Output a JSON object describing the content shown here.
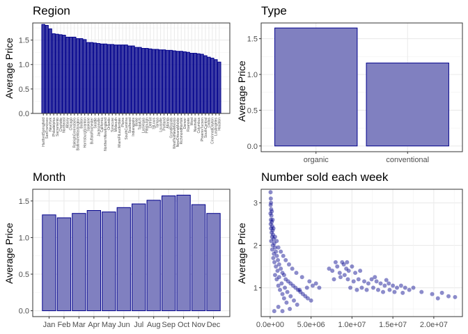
{
  "chart_data": [
    {
      "type": "bar",
      "title": "Region",
      "xlabel": "",
      "ylabel": "Average Price",
      "ylim": [
        0,
        1.85
      ],
      "yticks": [
        0.0,
        0.5,
        1.0,
        1.5
      ],
      "grid": true,
      "bar_fill": "#00008b",
      "bar_stroke": "#00008b",
      "categories": [
        "HartfordSpringfield",
        "SanFrancisco",
        "NewYork",
        "Philadelphia",
        "Sacramento",
        "Charlotte",
        "Northeast",
        "Albany",
        "Chicago",
        "RaleighGreensboro",
        "BaltimoreWashington",
        "Boston",
        "HarrisburgScranton",
        "Spokane",
        "BuffaloRochester",
        "Seattle",
        "Jacksonville",
        "California",
        "NorthernNewEngland",
        "Orlando",
        "Syracuse",
        "Midsouth",
        "MiamiFtLauderdale",
        "Plains",
        "SouthCarolina",
        "Southeast",
        "Indianapolis",
        "Boise",
        "TotalUS",
        "LasVegas",
        "Pittsburgh",
        "Detroit",
        "StLouis",
        "Tampa",
        "Louisville",
        "Portland",
        "Atlanta",
        "GrandRapids",
        "WestTexNewMexico",
        "NewOrleansMobile",
        "RichmondNorfolk",
        "Denver",
        "Roanoke",
        "West",
        "Nashville",
        "Columbus",
        "PhoenixTucson",
        "SouthCentral",
        "Dallas",
        "CincinnatiDayton",
        "LosAngeles",
        "Houston"
      ],
      "values": [
        1.82,
        1.8,
        1.73,
        1.63,
        1.62,
        1.61,
        1.6,
        1.56,
        1.56,
        1.56,
        1.53,
        1.53,
        1.51,
        1.45,
        1.45,
        1.44,
        1.43,
        1.42,
        1.42,
        1.41,
        1.41,
        1.4,
        1.4,
        1.4,
        1.4,
        1.38,
        1.38,
        1.35,
        1.35,
        1.33,
        1.33,
        1.32,
        1.31,
        1.31,
        1.3,
        1.3,
        1.29,
        1.29,
        1.28,
        1.27,
        1.27,
        1.26,
        1.25,
        1.23,
        1.23,
        1.22,
        1.21,
        1.18,
        1.15,
        1.13,
        1.1,
        1.05
      ]
    },
    {
      "type": "bar",
      "title": "Type",
      "xlabel": "",
      "ylabel": "Average Price",
      "ylim": [
        -0.08,
        1.72
      ],
      "yticks": [
        0.0,
        0.5,
        1.0,
        1.5
      ],
      "grid": true,
      "bar_fill": "#8080c0",
      "bar_stroke": "#00008b",
      "categories": [
        "organic",
        "conventional"
      ],
      "values": [
        1.65,
        1.16
      ]
    },
    {
      "type": "bar",
      "title": "Month",
      "xlabel": "",
      "ylabel": "Average Price",
      "ylim": [
        -0.08,
        1.66
      ],
      "yticks": [
        0.0,
        0.5,
        1.0,
        1.5
      ],
      "grid": true,
      "bar_fill": "#8080c0",
      "bar_stroke": "#00008b",
      "categories": [
        "Jan",
        "Feb",
        "Mar",
        "Apr",
        "May",
        "Jun",
        "Jul",
        "Aug",
        "Sep",
        "Oct",
        "Nov",
        "Dec"
      ],
      "values": [
        1.31,
        1.27,
        1.33,
        1.37,
        1.35,
        1.41,
        1.46,
        1.51,
        1.57,
        1.58,
        1.45,
        1.33
      ]
    },
    {
      "type": "scatter",
      "title": "Number sold each week",
      "xlabel": "",
      "ylabel": "Average Price",
      "xlim": [
        -1100000,
        23500000
      ],
      "ylim": [
        0.32,
        3.32
      ],
      "xticks": [
        0,
        5000000,
        10000000,
        15000000,
        20000000
      ],
      "xtick_labels": [
        "0.0e+00",
        "5.0e+06",
        "1.0e+07",
        "1.5e+07",
        "2.0e+07"
      ],
      "yticks": [
        1,
        2,
        3
      ],
      "grid": true,
      "point_color": "#00008b",
      "point_alpha": 0.45,
      "points": [
        [
          50000,
          3.25
        ],
        [
          80000,
          3.1
        ],
        [
          60000,
          2.95
        ],
        [
          120000,
          2.85
        ],
        [
          40000,
          2.75
        ],
        [
          150000,
          2.7
        ],
        [
          90000,
          2.6
        ],
        [
          200000,
          2.55
        ],
        [
          70000,
          2.5
        ],
        [
          260000,
          2.45
        ],
        [
          110000,
          2.4
        ],
        [
          300000,
          2.35
        ],
        [
          180000,
          2.3
        ],
        [
          350000,
          2.25
        ],
        [
          240000,
          2.2
        ],
        [
          420000,
          2.15
        ],
        [
          130000,
          2.1
        ],
        [
          500000,
          2.05
        ],
        [
          320000,
          2.0
        ],
        [
          600000,
          1.95
        ],
        [
          260000,
          1.9
        ],
        [
          700000,
          1.85
        ],
        [
          450000,
          1.8
        ],
        [
          820000,
          1.75
        ],
        [
          380000,
          1.7
        ],
        [
          950000,
          1.65
        ],
        [
          520000,
          1.6
        ],
        [
          1100000,
          1.55
        ],
        [
          700000,
          1.5
        ],
        [
          1300000,
          1.45
        ],
        [
          900000,
          1.4
        ],
        [
          1500000,
          1.35
        ],
        [
          600000,
          1.3
        ],
        [
          1700000,
          1.3
        ],
        [
          1100000,
          1.25
        ],
        [
          1900000,
          1.2
        ],
        [
          800000,
          1.2
        ],
        [
          2200000,
          1.15
        ],
        [
          1400000,
          1.1
        ],
        [
          2500000,
          1.1
        ],
        [
          1000000,
          1.05
        ],
        [
          2800000,
          1.05
        ],
        [
          1800000,
          1.0
        ],
        [
          3100000,
          1.0
        ],
        [
          1200000,
          0.95
        ],
        [
          3400000,
          0.95
        ],
        [
          2100000,
          0.9
        ],
        [
          3700000,
          0.9
        ],
        [
          1500000,
          0.85
        ],
        [
          4000000,
          0.85
        ],
        [
          2500000,
          0.8
        ],
        [
          4300000,
          0.8
        ],
        [
          1700000,
          0.75
        ],
        [
          4600000,
          0.75
        ],
        [
          2900000,
          0.7
        ],
        [
          5000000,
          0.7
        ],
        [
          2000000,
          0.65
        ],
        [
          3300000,
          0.6
        ],
        [
          1000000,
          0.55
        ],
        [
          2400000,
          0.5
        ],
        [
          500000,
          0.45
        ],
        [
          1500000,
          0.45
        ],
        [
          3600000,
          0.95
        ],
        [
          4500000,
          1.0
        ],
        [
          5200000,
          1.05
        ],
        [
          5600000,
          1.1
        ],
        [
          6000000,
          1.0
        ],
        [
          4800000,
          1.15
        ],
        [
          3900000,
          1.25
        ],
        [
          3200000,
          1.35
        ],
        [
          2700000,
          1.45
        ],
        [
          2300000,
          1.55
        ],
        [
          1900000,
          1.65
        ],
        [
          1600000,
          1.75
        ],
        [
          1300000,
          1.85
        ],
        [
          1000000,
          1.95
        ],
        [
          800000,
          2.1
        ],
        [
          600000,
          2.2
        ],
        [
          400000,
          2.4
        ],
        [
          300000,
          2.6
        ],
        [
          200000,
          2.8
        ],
        [
          100000,
          3.0
        ],
        [
          7200000,
          1.45
        ],
        [
          7600000,
          1.4
        ],
        [
          8200000,
          1.5
        ],
        [
          8800000,
          1.6
        ],
        [
          9000000,
          1.55
        ],
        [
          9300000,
          1.45
        ],
        [
          9600000,
          1.4
        ],
        [
          10000000,
          1.5
        ],
        [
          10400000,
          1.35
        ],
        [
          11000000,
          1.4
        ],
        [
          8500000,
          1.35
        ],
        [
          9500000,
          1.2
        ],
        [
          10200000,
          1.15
        ],
        [
          10800000,
          1.2
        ],
        [
          11500000,
          1.15
        ],
        [
          12000000,
          1.1
        ],
        [
          12400000,
          1.2
        ],
        [
          13000000,
          1.15
        ],
        [
          13500000,
          1.1
        ],
        [
          14000000,
          1.05
        ],
        [
          14500000,
          1.1
        ],
        [
          15000000,
          1.05
        ],
        [
          15500000,
          1.0
        ],
        [
          16000000,
          1.05
        ],
        [
          16500000,
          1.0
        ],
        [
          17000000,
          0.95
        ],
        [
          17500000,
          1.0
        ],
        [
          9800000,
          1.0
        ],
        [
          10600000,
          0.95
        ],
        [
          11200000,
          1.0
        ],
        [
          11800000,
          0.95
        ],
        [
          12600000,
          1.0
        ],
        [
          13200000,
          0.95
        ],
        [
          13800000,
          0.9
        ],
        [
          14600000,
          0.95
        ],
        [
          15200000,
          0.9
        ],
        [
          16200000,
          0.88
        ],
        [
          18500000,
          0.9
        ],
        [
          19800000,
          0.85
        ],
        [
          21000000,
          0.88
        ],
        [
          21800000,
          0.8
        ],
        [
          22600000,
          0.78
        ],
        [
          20500000,
          0.75
        ],
        [
          8000000,
          1.6
        ],
        [
          8600000,
          1.25
        ],
        [
          9100000,
          1.3
        ],
        [
          12800000,
          1.25
        ],
        [
          14200000,
          1.18
        ],
        [
          7800000,
          1.2
        ],
        [
          9400000,
          1.6
        ]
      ]
    }
  ]
}
